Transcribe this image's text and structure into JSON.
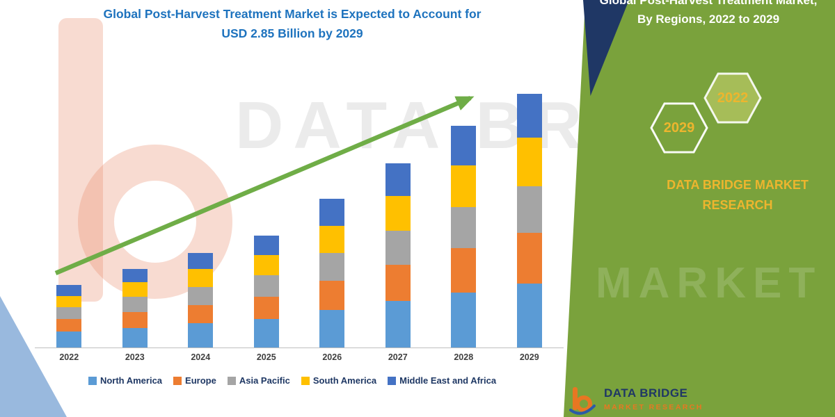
{
  "colors": {
    "title_blue": "#1E73BE",
    "panel_green": "#7AA23C",
    "navy": "#1F3765",
    "gold": "#EDB52E",
    "arrow_green": "#6FAD47",
    "axis_gray": "#BFBFBF",
    "x_label_gray": "#404040",
    "legend_text": "#1F3864",
    "logo_orange": "#E87722"
  },
  "title": {
    "line1": "Global Post-Harvest Treatment Market is Expected to Account for",
    "line2": "USD 2.85 Billion by 2029"
  },
  "chart_data": {
    "type": "bar",
    "stacked": true,
    "title": "Global Post-Harvest Treatment Market is Expected to Account for USD 2.85 Billion by 2029",
    "xlabel": "",
    "ylabel": "",
    "values_unit": "USD Billion",
    "ylim": [
      0,
      3.0
    ],
    "legend_position": "bottom",
    "grid": false,
    "categories": [
      "2022",
      "2023",
      "2024",
      "2025",
      "2026",
      "2027",
      "2028",
      "2029"
    ],
    "series": [
      {
        "name": "North America",
        "color": "#5B9BD5",
        "values": [
          0.18,
          0.22,
          0.27,
          0.32,
          0.42,
          0.52,
          0.62,
          0.72
        ]
      },
      {
        "name": "Europe",
        "color": "#ED7D31",
        "values": [
          0.14,
          0.18,
          0.21,
          0.25,
          0.33,
          0.41,
          0.5,
          0.57
        ]
      },
      {
        "name": "Asia Pacific",
        "color": "#A5A5A5",
        "values": [
          0.13,
          0.17,
          0.2,
          0.24,
          0.31,
          0.38,
          0.46,
          0.52
        ]
      },
      {
        "name": "South America",
        "color": "#FFC000",
        "values": [
          0.13,
          0.16,
          0.2,
          0.23,
          0.31,
          0.39,
          0.47,
          0.55
        ]
      },
      {
        "name": "Middle East and Africa",
        "color": "#4472C4",
        "values": [
          0.12,
          0.15,
          0.18,
          0.22,
          0.3,
          0.37,
          0.44,
          0.49
        ]
      }
    ],
    "annotations": [
      "upward growth trend arrow from 2022 to 2029"
    ]
  },
  "side_panel": {
    "heading": "Global Post-Harvest Treatment Market, By Regions, 2022 to 2029",
    "hexagon_front_label": "2029",
    "hexagon_back_label": "2022",
    "brand_line1": "DATA BRIDGE MARKET",
    "brand_line2": "RESEARCH"
  },
  "watermark": {
    "line1": "DATA BRIDGE",
    "line2": "MARKET RESEARCH"
  },
  "footer_logo": {
    "title": "DATA BRIDGE",
    "subtitle": "MARKET RESEARCH"
  }
}
